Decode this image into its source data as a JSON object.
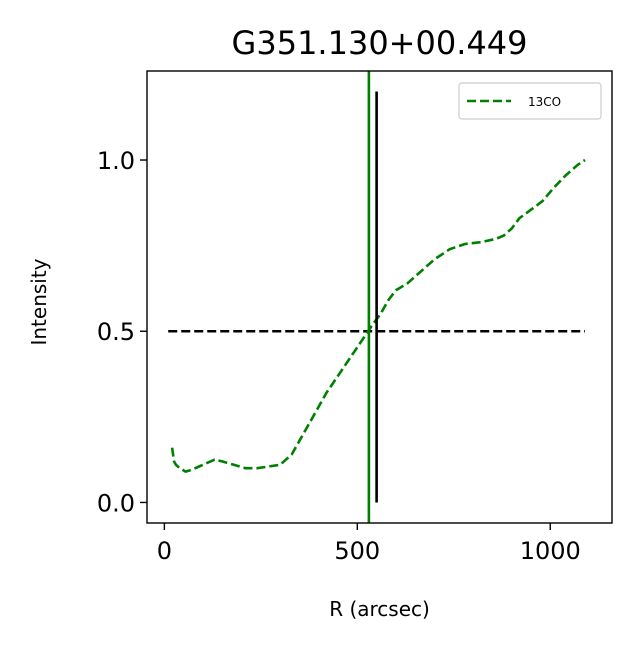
{
  "chart_data": {
    "type": "line",
    "title": "G351.130+00.449",
    "xlabel": "R (arcsec)",
    "ylabel": "Intensity",
    "xlim": [
      -45,
      1160
    ],
    "ylim": [
      -0.06,
      1.26
    ],
    "xticks": [
      0,
      500,
      1000
    ],
    "xtick_labels": [
      "0",
      "500",
      "1000"
    ],
    "yticks": [
      0.0,
      0.5,
      1.0
    ],
    "ytick_labels": [
      "0.0",
      "0.5",
      "1.0"
    ],
    "grid": false,
    "legend": {
      "position": "top-right"
    },
    "colors": {
      "series": "#008000",
      "reference": "#000000"
    },
    "series": [
      {
        "name": "13CO",
        "style": "dashed",
        "color": "#008000",
        "x": [
          20,
          25,
          30,
          40,
          55,
          70,
          90,
          110,
          130,
          150,
          180,
          210,
          240,
          270,
          300,
          330,
          360,
          390,
          420,
          450,
          480,
          510,
          540,
          560,
          580,
          600,
          630,
          660,
          700,
          740,
          780,
          820,
          860,
          880,
          900,
          920,
          950,
          980,
          1010,
          1040,
          1070,
          1090
        ],
        "y": [
          0.16,
          0.12,
          0.11,
          0.1,
          0.09,
          0.095,
          0.105,
          0.115,
          0.125,
          0.12,
          0.11,
          0.1,
          0.1,
          0.105,
          0.11,
          0.14,
          0.2,
          0.26,
          0.32,
          0.37,
          0.42,
          0.47,
          0.52,
          0.55,
          0.59,
          0.62,
          0.64,
          0.67,
          0.71,
          0.74,
          0.755,
          0.76,
          0.77,
          0.78,
          0.8,
          0.83,
          0.855,
          0.88,
          0.92,
          0.955,
          0.985,
          1.0
        ]
      }
    ],
    "hline": {
      "y": 0.5,
      "xmin": 10,
      "xmax": 1090,
      "style": "dashed",
      "color": "#000000"
    },
    "vline_green": {
      "x": 530,
      "color": "#008000",
      "style": "solid"
    },
    "vline_black": {
      "x": 550,
      "ymin": 0.0,
      "ymax": 1.2,
      "color": "#000000",
      "style": "solid"
    }
  }
}
